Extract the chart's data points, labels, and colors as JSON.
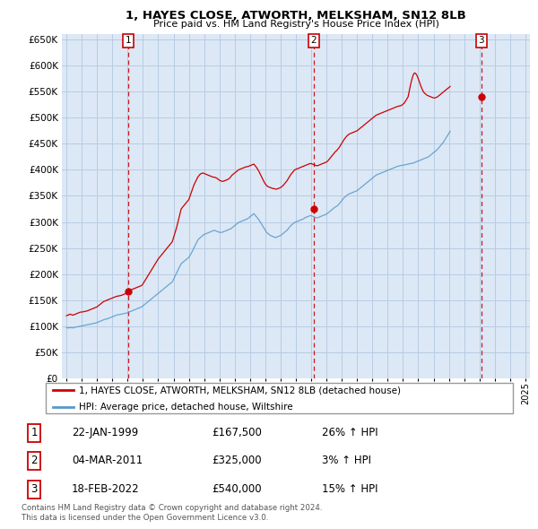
{
  "title": "1, HAYES CLOSE, ATWORTH, MELKSHAM, SN12 8LB",
  "subtitle": "Price paid vs. HM Land Registry's House Price Index (HPI)",
  "red_label": "1, HAYES CLOSE, ATWORTH, MELKSHAM, SN12 8LB (detached house)",
  "blue_label": "HPI: Average price, detached house, Wiltshire",
  "footer1": "Contains HM Land Registry data © Crown copyright and database right 2024.",
  "footer2": "This data is licensed under the Open Government Licence v3.0.",
  "transactions": [
    {
      "num": 1,
      "date": "22-JAN-1999",
      "price": "£167,500",
      "change": "26% ↑ HPI"
    },
    {
      "num": 2,
      "date": "04-MAR-2011",
      "price": "£325,000",
      "change": "3% ↑ HPI"
    },
    {
      "num": 3,
      "date": "18-FEB-2022",
      "price": "£540,000",
      "change": "15% ↑ HPI"
    }
  ],
  "sale_years": [
    1999.06,
    2011.17,
    2022.12
  ],
  "sale_prices": [
    167500,
    325000,
    540000
  ],
  "ylim": [
    0,
    660000
  ],
  "yticks": [
    0,
    50000,
    100000,
    150000,
    200000,
    250000,
    300000,
    350000,
    400000,
    450000,
    500000,
    550000,
    600000,
    650000
  ],
  "xlim_start": 1994.7,
  "xlim_end": 2025.3,
  "bg_color": "#dce8f5",
  "grid_color": "#b8cce4",
  "red_color": "#cc0000",
  "blue_color": "#5599cc",
  "box_border": "#cc0000",
  "hpi_years": [
    1995.0,
    1995.083,
    1995.167,
    1995.25,
    1995.333,
    1995.417,
    1995.5,
    1995.583,
    1995.667,
    1995.75,
    1995.833,
    1995.917,
    1996.0,
    1996.083,
    1996.167,
    1996.25,
    1996.333,
    1996.417,
    1996.5,
    1996.583,
    1996.667,
    1996.75,
    1996.833,
    1996.917,
    1997.0,
    1997.083,
    1997.167,
    1997.25,
    1997.333,
    1997.417,
    1997.5,
    1997.583,
    1997.667,
    1997.75,
    1997.833,
    1997.917,
    1998.0,
    1998.083,
    1998.167,
    1998.25,
    1998.333,
    1998.417,
    1998.5,
    1998.583,
    1998.667,
    1998.75,
    1998.833,
    1998.917,
    1999.0,
    1999.083,
    1999.167,
    1999.25,
    1999.333,
    1999.417,
    1999.5,
    1999.583,
    1999.667,
    1999.75,
    1999.833,
    1999.917,
    2000.0,
    2000.083,
    2000.167,
    2000.25,
    2000.333,
    2000.417,
    2000.5,
    2000.583,
    2000.667,
    2000.75,
    2000.833,
    2000.917,
    2001.0,
    2001.083,
    2001.167,
    2001.25,
    2001.333,
    2001.417,
    2001.5,
    2001.583,
    2001.667,
    2001.75,
    2001.833,
    2001.917,
    2002.0,
    2002.083,
    2002.167,
    2002.25,
    2002.333,
    2002.417,
    2002.5,
    2002.583,
    2002.667,
    2002.75,
    2002.833,
    2002.917,
    2003.0,
    2003.083,
    2003.167,
    2003.25,
    2003.333,
    2003.417,
    2003.5,
    2003.583,
    2003.667,
    2003.75,
    2003.833,
    2003.917,
    2004.0,
    2004.083,
    2004.167,
    2004.25,
    2004.333,
    2004.417,
    2004.5,
    2004.583,
    2004.667,
    2004.75,
    2004.833,
    2004.917,
    2005.0,
    2005.083,
    2005.167,
    2005.25,
    2005.333,
    2005.417,
    2005.5,
    2005.583,
    2005.667,
    2005.75,
    2005.833,
    2005.917,
    2006.0,
    2006.083,
    2006.167,
    2006.25,
    2006.333,
    2006.417,
    2006.5,
    2006.583,
    2006.667,
    2006.75,
    2006.833,
    2006.917,
    2007.0,
    2007.083,
    2007.167,
    2007.25,
    2007.333,
    2007.417,
    2007.5,
    2007.583,
    2007.667,
    2007.75,
    2007.833,
    2007.917,
    2008.0,
    2008.083,
    2008.167,
    2008.25,
    2008.333,
    2008.417,
    2008.5,
    2008.583,
    2008.667,
    2008.75,
    2008.833,
    2008.917,
    2009.0,
    2009.083,
    2009.167,
    2009.25,
    2009.333,
    2009.417,
    2009.5,
    2009.583,
    2009.667,
    2009.75,
    2009.833,
    2009.917,
    2010.0,
    2010.083,
    2010.167,
    2010.25,
    2010.333,
    2010.417,
    2010.5,
    2010.583,
    2010.667,
    2010.75,
    2010.833,
    2010.917,
    2011.0,
    2011.083,
    2011.167,
    2011.25,
    2011.333,
    2011.417,
    2011.5,
    2011.583,
    2011.667,
    2011.75,
    2011.833,
    2011.917,
    2012.0,
    2012.083,
    2012.167,
    2012.25,
    2012.333,
    2012.417,
    2012.5,
    2012.583,
    2012.667,
    2012.75,
    2012.833,
    2012.917,
    2013.0,
    2013.083,
    2013.167,
    2013.25,
    2013.333,
    2013.417,
    2013.5,
    2013.583,
    2013.667,
    2013.75,
    2013.833,
    2013.917,
    2014.0,
    2014.083,
    2014.167,
    2014.25,
    2014.333,
    2014.417,
    2014.5,
    2014.583,
    2014.667,
    2014.75,
    2014.833,
    2014.917,
    2015.0,
    2015.083,
    2015.167,
    2015.25,
    2015.333,
    2015.417,
    2015.5,
    2015.583,
    2015.667,
    2015.75,
    2015.833,
    2015.917,
    2016.0,
    2016.083,
    2016.167,
    2016.25,
    2016.333,
    2016.417,
    2016.5,
    2016.583,
    2016.667,
    2016.75,
    2016.833,
    2016.917,
    2017.0,
    2017.083,
    2017.167,
    2017.25,
    2017.333,
    2017.417,
    2017.5,
    2017.583,
    2017.667,
    2017.75,
    2017.833,
    2017.917,
    2018.0,
    2018.083,
    2018.167,
    2018.25,
    2018.333,
    2018.417,
    2018.5,
    2018.583,
    2018.667,
    2018.75,
    2018.833,
    2018.917,
    2019.0,
    2019.083,
    2019.167,
    2019.25,
    2019.333,
    2019.417,
    2019.5,
    2019.583,
    2019.667,
    2019.75,
    2019.833,
    2019.917,
    2020.0,
    2020.083,
    2020.167,
    2020.25,
    2020.333,
    2020.417,
    2020.5,
    2020.583,
    2020.667,
    2020.75,
    2020.833,
    2020.917,
    2021.0,
    2021.083,
    2021.167,
    2021.25,
    2021.333,
    2021.417,
    2021.5,
    2021.583,
    2021.667,
    2021.75,
    2021.833,
    2021.917,
    2022.0,
    2022.083,
    2022.167,
    2022.25,
    2022.333,
    2022.417,
    2022.5,
    2022.583,
    2022.667,
    2022.75,
    2022.833,
    2022.917,
    2023.0,
    2023.083,
    2023.167,
    2023.25,
    2023.333,
    2023.417,
    2023.5,
    2023.583,
    2023.667,
    2023.75,
    2023.833,
    2023.917,
    2024.0,
    2024.083,
    2024.167,
    2024.25,
    2024.333,
    2024.417,
    2024.5,
    2024.583,
    2024.667,
    2024.75
  ],
  "hpi_values": [
    97000,
    96500,
    96800,
    97200,
    97000,
    96500,
    97500,
    98000,
    98500,
    99000,
    99500,
    100000,
    100500,
    101000,
    101500,
    102000,
    102500,
    103000,
    103500,
    104000,
    104500,
    105000,
    105500,
    106000,
    107000,
    108000,
    109000,
    110000,
    111000,
    112000,
    113000,
    113500,
    114000,
    115000,
    116000,
    117000,
    118000,
    119000,
    120000,
    121000,
    121500,
    122000,
    122500,
    123000,
    123500,
    124000,
    124500,
    125000,
    126000,
    127000,
    128000,
    129000,
    130000,
    131000,
    132000,
    133000,
    134000,
    135000,
    136000,
    137000,
    139000,
    141000,
    143000,
    145000,
    147000,
    149000,
    151000,
    153000,
    155000,
    157000,
    159000,
    161000,
    163000,
    165000,
    167000,
    169000,
    171000,
    173000,
    175000,
    177000,
    179000,
    181000,
    183000,
    185000,
    190000,
    195000,
    200000,
    205000,
    210000,
    215000,
    220000,
    222000,
    224000,
    226000,
    228000,
    230000,
    232000,
    236000,
    240000,
    245000,
    250000,
    255000,
    260000,
    265000,
    268000,
    270000,
    272000,
    274000,
    276000,
    277000,
    278000,
    279000,
    280000,
    281000,
    282000,
    283000,
    284000,
    283000,
    282000,
    281000,
    280000,
    280000,
    280000,
    281000,
    282000,
    283000,
    284000,
    285000,
    286000,
    287000,
    289000,
    291000,
    293000,
    295000,
    297000,
    299000,
    300000,
    301000,
    302000,
    303000,
    304000,
    305000,
    306000,
    308000,
    310000,
    312000,
    314000,
    316000,
    313000,
    310000,
    307000,
    304000,
    300000,
    296000,
    292000,
    288000,
    284000,
    280000,
    278000,
    276000,
    274000,
    273000,
    272000,
    271000,
    270000,
    271000,
    272000,
    273000,
    274000,
    276000,
    278000,
    280000,
    282000,
    284000,
    287000,
    290000,
    293000,
    295000,
    297000,
    299000,
    300000,
    301000,
    302000,
    303000,
    304000,
    305000,
    306000,
    308000,
    309000,
    310000,
    311000,
    312000,
    312000,
    311000,
    310000,
    309000,
    308000,
    308000,
    309000,
    310000,
    311000,
    312000,
    313000,
    314000,
    315000,
    317000,
    319000,
    321000,
    323000,
    325000,
    327000,
    329000,
    330000,
    332000,
    335000,
    338000,
    341000,
    344000,
    347000,
    349000,
    351000,
    353000,
    354000,
    355000,
    356000,
    357000,
    358000,
    359000,
    360000,
    362000,
    364000,
    366000,
    368000,
    370000,
    372000,
    374000,
    376000,
    378000,
    380000,
    382000,
    384000,
    386000,
    388000,
    390000,
    391000,
    392000,
    393000,
    394000,
    395000,
    396000,
    397000,
    398000,
    399000,
    400000,
    401000,
    402000,
    403000,
    404000,
    405000,
    406000,
    407000,
    407500,
    408000,
    408500,
    409000,
    409500,
    410000,
    410500,
    411000,
    411500,
    412000,
    412500,
    413000,
    414000,
    415000,
    416000,
    417000,
    418000,
    419000,
    420000,
    421000,
    422000,
    423000,
    424000,
    425000,
    427000,
    429000,
    431000,
    433000,
    435000,
    437000,
    439000,
    442000,
    445000,
    448000,
    451000,
    454000,
    458000,
    462000,
    466000,
    470000,
    474000,
    478000,
    482000,
    487000,
    492000,
    497000,
    500000,
    503000,
    506000,
    507000,
    508000,
    507000,
    506000,
    505000,
    504000,
    503000,
    502000,
    501000,
    500000,
    499000,
    498000,
    497000,
    496000,
    495000,
    494000,
    493000,
    492000,
    491000,
    490000,
    489000,
    488000,
    488000,
    488000,
    488500,
    489000,
    489500,
    490000,
    490500,
    491000,
    491500
  ],
  "red_values": [
    120000,
    121000,
    122000,
    123000,
    122000,
    121000,
    122000,
    123000,
    124000,
    125000,
    126000,
    127000,
    127000,
    127500,
    128000,
    128500,
    129000,
    130000,
    131000,
    132000,
    133000,
    134000,
    135000,
    136000,
    137000,
    139000,
    141000,
    143000,
    145000,
    147000,
    148000,
    149000,
    150000,
    151000,
    152000,
    153000,
    154000,
    155000,
    156000,
    157000,
    157500,
    158000,
    158500,
    159000,
    160000,
    161000,
    162000,
    163000,
    165000,
    167000,
    169000,
    170000,
    171000,
    172000,
    173000,
    174000,
    175000,
    176000,
    177000,
    178000,
    181000,
    185000,
    189000,
    193000,
    197000,
    201000,
    205000,
    209000,
    213000,
    217000,
    221000,
    225000,
    229000,
    232000,
    235000,
    238000,
    241000,
    244000,
    247000,
    250000,
    253000,
    256000,
    259000,
    262000,
    270000,
    278000,
    286000,
    295000,
    305000,
    315000,
    325000,
    328000,
    331000,
    334000,
    337000,
    340000,
    343000,
    350000,
    357000,
    364000,
    371000,
    376000,
    381000,
    386000,
    389000,
    392000,
    393000,
    394000,
    393000,
    392000,
    391000,
    390000,
    389000,
    388000,
    387000,
    386000,
    386000,
    385000,
    384000,
    382000,
    380000,
    379000,
    378000,
    378000,
    379000,
    380000,
    381000,
    382000,
    384000,
    387000,
    390000,
    392000,
    394000,
    396000,
    398000,
    400000,
    401000,
    402000,
    403000,
    404000,
    405000,
    406000,
    406000,
    407000,
    408000,
    409000,
    410000,
    411000,
    408000,
    405000,
    401000,
    397000,
    392000,
    387000,
    382000,
    377000,
    373000,
    370000,
    368000,
    367000,
    366000,
    365000,
    364000,
    364000,
    363000,
    363000,
    364000,
    365000,
    366000,
    368000,
    370000,
    373000,
    376000,
    379000,
    383000,
    387000,
    391000,
    394000,
    397000,
    400000,
    401000,
    402000,
    403000,
    404000,
    405000,
    406000,
    407000,
    408000,
    409000,
    410000,
    411000,
    412000,
    412000,
    411000,
    410000,
    409000,
    408000,
    408000,
    409000,
    410000,
    411000,
    412000,
    413000,
    414000,
    415000,
    417000,
    420000,
    423000,
    426000,
    429000,
    432000,
    435000,
    437000,
    440000,
    443000,
    447000,
    451000,
    455000,
    459000,
    462000,
    465000,
    467000,
    469000,
    470000,
    471000,
    472000,
    473000,
    474000,
    475000,
    477000,
    479000,
    481000,
    483000,
    485000,
    487000,
    489000,
    491000,
    493000,
    495000,
    497000,
    499000,
    501000,
    503000,
    505000,
    506000,
    507000,
    508000,
    509000,
    510000,
    511000,
    512000,
    513000,
    514000,
    515000,
    516000,
    517000,
    518000,
    519000,
    520000,
    521000,
    522000,
    522500,
    523000,
    524000,
    526000,
    528000,
    532000,
    536000,
    540000,
    552000,
    564000,
    574000,
    582000,
    586000,
    585000,
    581000,
    575000,
    568000,
    561000,
    555000,
    550000,
    547000,
    545000,
    543000,
    542000,
    541000,
    540000,
    539000,
    538000,
    538000,
    539000,
    540000,
    542000,
    544000,
    546000,
    548000,
    550000,
    552000,
    554000,
    556000,
    558000,
    560000
  ]
}
